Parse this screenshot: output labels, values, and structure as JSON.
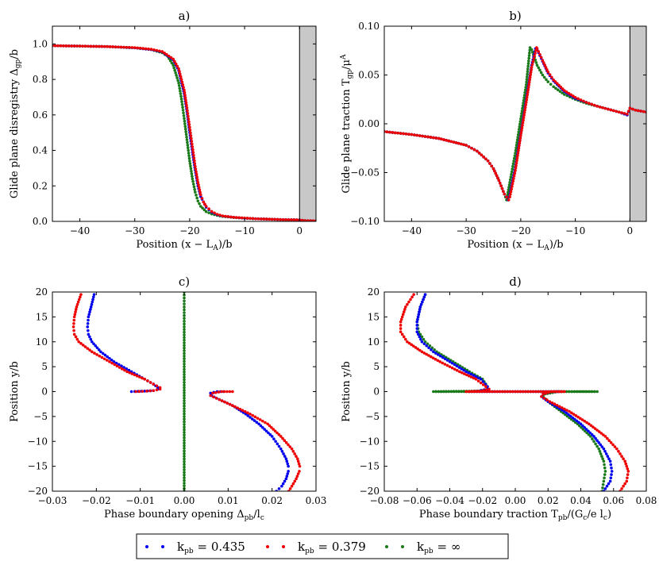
{
  "legend": {
    "entries": [
      {
        "label": "k_pb = 0.435",
        "color": "#0000ee"
      },
      {
        "label": "k_pb = 0.379",
        "color": "#ee0000"
      },
      {
        "label": "k_pb = ∞",
        "color": "#1a7a1a"
      }
    ]
  },
  "colors": {
    "blue": "#0000ee",
    "red": "#ee0000",
    "green": "#1a7a1a",
    "shade": "#c8c8c8"
  },
  "chart_data": [
    {
      "id": "a",
      "title": "a)",
      "type": "scatter",
      "xlabel": "Position (x − L_A)/b",
      "ylabel": "Glide plane disregistry Δ_gp/b",
      "xlim": [
        -45,
        3
      ],
      "ylim": [
        0,
        1.1
      ],
      "xticks": [
        -40,
        -30,
        -20,
        -10,
        0
      ],
      "yticks": [
        0,
        0.2,
        0.4,
        0.6,
        0.8,
        1.0
      ],
      "xtick_labels": [
        "−40",
        "−30",
        "−20",
        "−10",
        "0"
      ],
      "ytick_labels": [
        "0.0",
        "0.2",
        "0.4",
        "0.6",
        "0.8",
        "1.0"
      ],
      "shaded_region": [
        0,
        3
      ],
      "series": [
        {
          "color": "#1a7a1a",
          "x": [
            -45,
            -40,
            -35,
            -30,
            -27,
            -25,
            -24,
            -23,
            -22,
            -21.5,
            -21,
            -20.5,
            -20,
            -19.5,
            -19,
            -18.5,
            -18,
            -17,
            -16,
            -15,
            -14,
            -12,
            -10,
            -8,
            -5,
            -3,
            -1,
            0,
            1,
            3
          ],
          "y": [
            0.99,
            0.988,
            0.985,
            0.978,
            0.968,
            0.95,
            0.93,
            0.88,
            0.78,
            0.69,
            0.58,
            0.46,
            0.34,
            0.24,
            0.165,
            0.115,
            0.085,
            0.055,
            0.042,
            0.034,
            0.028,
            0.022,
            0.018,
            0.015,
            0.012,
            0.01,
            0.009,
            0.008,
            0.004,
            0.003
          ]
        },
        {
          "color": "#0000ee",
          "x": [
            -45,
            -40,
            -35,
            -30,
            -27,
            -25,
            -23,
            -22,
            -21,
            -20.5,
            -20,
            -19.5,
            -19,
            -18.5,
            -18,
            -17,
            -16,
            -15,
            -14,
            -12,
            -10,
            -8,
            -5,
            -3,
            -1,
            0,
            1,
            3
          ],
          "y": [
            0.99,
            0.988,
            0.985,
            0.978,
            0.968,
            0.955,
            0.91,
            0.85,
            0.72,
            0.62,
            0.5,
            0.39,
            0.29,
            0.2,
            0.14,
            0.08,
            0.052,
            0.038,
            0.03,
            0.023,
            0.018,
            0.015,
            0.012,
            0.01,
            0.009,
            0.008,
            0.004,
            0.003
          ]
        },
        {
          "color": "#ee0000",
          "x": [
            -45,
            -40,
            -35,
            -30,
            -27,
            -25,
            -23,
            -22,
            -21,
            -20.5,
            -20,
            -19.5,
            -19,
            -18.5,
            -18,
            -17.5,
            -17,
            -16,
            -15,
            -14,
            -12,
            -10,
            -8,
            -5,
            -3,
            -1,
            0,
            1,
            3
          ],
          "y": [
            0.99,
            0.988,
            0.985,
            0.979,
            0.97,
            0.957,
            0.915,
            0.86,
            0.74,
            0.64,
            0.53,
            0.42,
            0.31,
            0.22,
            0.15,
            0.11,
            0.085,
            0.056,
            0.04,
            0.031,
            0.023,
            0.019,
            0.015,
            0.012,
            0.01,
            0.009,
            0.008,
            0.004,
            0.003
          ]
        }
      ]
    },
    {
      "id": "b",
      "title": "b)",
      "type": "scatter",
      "xlabel": "Position (x − L_A)/b",
      "ylabel": "Glide plane traction T_gp/μ^A",
      "xlim": [
        -45,
        3
      ],
      "ylim": [
        -0.1,
        0.1
      ],
      "xticks": [
        -40,
        -30,
        -20,
        -10,
        0
      ],
      "yticks": [
        -0.1,
        -0.05,
        0,
        0.05,
        0.1
      ],
      "xtick_labels": [
        "−40",
        "−30",
        "−20",
        "−10",
        "0"
      ],
      "ytick_labels": [
        "−0.10",
        "−0.05",
        "0.00",
        "0.05",
        "0.10"
      ],
      "shaded_region": [
        0,
        3
      ],
      "series": [
        {
          "color": "#1a7a1a",
          "x": [
            -45,
            -40,
            -35,
            -30,
            -28,
            -26,
            -25,
            -24,
            -23,
            -22.6,
            -22,
            -21,
            -20,
            -19,
            -18.3,
            -18,
            -17.5,
            -17,
            -16,
            -15,
            -14,
            -12,
            -10,
            -8,
            -6,
            -4,
            -2,
            -0.5,
            0,
            1,
            3
          ],
          "y": [
            -0.008,
            -0.011,
            -0.015,
            -0.022,
            -0.028,
            -0.038,
            -0.046,
            -0.058,
            -0.072,
            -0.078,
            -0.06,
            -0.03,
            0.005,
            0.04,
            0.078,
            0.076,
            0.068,
            0.06,
            0.05,
            0.043,
            0.038,
            0.03,
            0.025,
            0.021,
            0.018,
            0.015,
            0.012,
            0.009,
            0.016,
            0.014,
            0.012
          ]
        },
        {
          "color": "#0000ee",
          "x": [
            -45,
            -40,
            -35,
            -30,
            -28,
            -26,
            -25,
            -24,
            -23,
            -22.3,
            -22,
            -21,
            -20,
            -19,
            -18,
            -17.3,
            -17,
            -16.5,
            -16,
            -15,
            -14,
            -12,
            -10,
            -8,
            -6,
            -4,
            -2,
            -0.5,
            0,
            1,
            3
          ],
          "y": [
            -0.008,
            -0.011,
            -0.015,
            -0.022,
            -0.028,
            -0.038,
            -0.046,
            -0.058,
            -0.072,
            -0.078,
            -0.072,
            -0.045,
            -0.01,
            0.025,
            0.06,
            0.077,
            0.076,
            0.07,
            0.064,
            0.052,
            0.044,
            0.033,
            0.026,
            0.022,
            0.018,
            0.015,
            0.012,
            0.009,
            0.016,
            0.014,
            0.012
          ]
        },
        {
          "color": "#ee0000",
          "x": [
            -45,
            -40,
            -35,
            -30,
            -28,
            -26,
            -25,
            -24,
            -23,
            -22.2,
            -22,
            -21,
            -20,
            -19,
            -18,
            -17.1,
            -17,
            -16.5,
            -16,
            -15,
            -14,
            -12,
            -10,
            -8,
            -6,
            -4,
            -2,
            -0.5,
            0,
            1,
            3
          ],
          "y": [
            -0.008,
            -0.011,
            -0.015,
            -0.022,
            -0.028,
            -0.038,
            -0.046,
            -0.058,
            -0.072,
            -0.078,
            -0.075,
            -0.048,
            -0.012,
            0.022,
            0.058,
            0.078,
            0.077,
            0.071,
            0.065,
            0.053,
            0.045,
            0.034,
            0.027,
            0.022,
            0.018,
            0.015,
            0.012,
            0.01,
            0.016,
            0.014,
            0.012
          ]
        }
      ]
    },
    {
      "id": "c",
      "title": "c)",
      "type": "scatter",
      "xlabel": "Phase boundary opening Δ_pb/l_c",
      "ylabel": "Position y/b",
      "xlim": [
        -0.03,
        0.03
      ],
      "ylim": [
        -20,
        20
      ],
      "xticks": [
        -0.03,
        -0.02,
        -0.01,
        0,
        0.01,
        0.02,
        0.03
      ],
      "yticks": [
        -20,
        -15,
        -10,
        -5,
        0,
        5,
        10,
        15,
        20
      ],
      "xtick_labels": [
        "−0.03",
        "−0.02",
        "−0.01",
        "0.00",
        "0.01",
        "0.02",
        "0.03"
      ],
      "ytick_labels": [
        "−20",
        "−15",
        "−10",
        "−5",
        "0",
        "5",
        "10",
        "15",
        "20"
      ],
      "series": [
        {
          "color": "#0000ee",
          "x": [
            -0.0205,
            -0.0212,
            -0.0218,
            -0.022,
            -0.0218,
            -0.021,
            -0.019,
            -0.016,
            -0.012,
            -0.009,
            -0.007,
            -0.006,
            -0.006,
            -0.007,
            -0.009,
            -0.0105,
            -0.012
          ],
          "y": [
            19.5,
            17,
            15,
            13,
            11.5,
            10,
            8,
            6,
            4,
            2.5,
            1.5,
            0.8,
            0.5,
            0.2,
            0.1,
            0.05,
            0
          ]
        },
        {
          "color": "#ee0000",
          "x": [
            -0.0235,
            -0.0245,
            -0.025,
            -0.0252,
            -0.025,
            -0.024,
            -0.021,
            -0.017,
            -0.013,
            -0.009,
            -0.007,
            -0.0055,
            -0.0055,
            -0.007,
            -0.0085,
            -0.0095,
            -0.011
          ],
          "y": [
            19.5,
            17,
            15,
            13,
            11.5,
            10,
            8,
            6,
            4,
            2.5,
            1.5,
            0.8,
            0.5,
            0.2,
            0.1,
            0.05,
            0
          ]
        },
        {
          "color": "#0000ee",
          "x": [
            0.009,
            0.0075,
            0.006,
            0.0062,
            0.008,
            0.011,
            0.014,
            0.017,
            0.02,
            0.022,
            0.0232,
            0.0237,
            0.0237,
            0.0232,
            0.0222,
            0.021
          ],
          "y": [
            0,
            0,
            -0.3,
            -0.8,
            -1.6,
            -2.8,
            -4.5,
            -6.5,
            -9,
            -11.5,
            -13.5,
            -15,
            -16,
            -17.5,
            -19,
            -20
          ]
        },
        {
          "color": "#ee0000",
          "x": [
            0.011,
            0.0085,
            0.0065,
            0.006,
            0.008,
            0.011,
            0.015,
            0.019,
            0.022,
            0.0245,
            0.0258,
            0.0263,
            0.0262,
            0.0255,
            0.0245,
            0.0238
          ],
          "y": [
            0,
            0,
            -0.3,
            -0.8,
            -1.6,
            -2.8,
            -4.5,
            -6.5,
            -9,
            -11.5,
            -13.5,
            -15,
            -16,
            -17.5,
            -19,
            -20
          ]
        },
        {
          "color": "#1a7a1a",
          "x": [
            0,
            0,
            0,
            0,
            0,
            0,
            0
          ],
          "y": [
            20,
            17,
            13,
            5,
            -5,
            -13,
            -20
          ]
        }
      ]
    },
    {
      "id": "d",
      "title": "d)",
      "type": "scatter",
      "xlabel": "Phase boundary traction T_pb/(G_c/e l_c)",
      "ylabel": "Position y/b",
      "xlim": [
        -0.08,
        0.08
      ],
      "ylim": [
        -20,
        20
      ],
      "xticks": [
        -0.08,
        -0.06,
        -0.04,
        -0.02,
        0,
        0.02,
        0.04,
        0.06,
        0.08
      ],
      "yticks": [
        -20,
        -15,
        -10,
        -5,
        0,
        5,
        10,
        15,
        20
      ],
      "xtick_labels": [
        "−0.08",
        "−0.06",
        "−0.04",
        "−0.02",
        "0.00",
        "0.02",
        "0.04",
        "0.06",
        "0.08"
      ],
      "ytick_labels": [
        "−20",
        "−15",
        "−10",
        "−5",
        "0",
        "5",
        "10",
        "15",
        "20"
      ],
      "series": [
        {
          "color": "#1a7a1a",
          "x": [
            -0.055,
            -0.058,
            -0.06,
            -0.059,
            -0.055,
            -0.048,
            -0.038,
            -0.028,
            -0.02,
            -0.017,
            -0.017,
            -0.022,
            -0.05,
            0.05,
            0.038,
            0.026,
            0.018,
            0.017,
            0.02,
            0.028,
            0.038,
            0.046,
            0.051,
            0.054,
            0.055,
            0.054,
            0.053
          ],
          "y": [
            19.5,
            17,
            14,
            12,
            10,
            8,
            6,
            4,
            2.5,
            1,
            0.5,
            0.1,
            0,
            0,
            0,
            0,
            -0.5,
            -1,
            -2,
            -4,
            -6.5,
            -9,
            -11.5,
            -14,
            -16,
            -18,
            -20
          ]
        },
        {
          "color": "#0000ee",
          "x": [
            -0.055,
            -0.058,
            -0.06,
            -0.06,
            -0.057,
            -0.05,
            -0.04,
            -0.03,
            -0.021,
            -0.017,
            -0.017,
            -0.023,
            -0.028,
            0.028,
            0.022,
            0.017,
            0.016,
            0.02,
            0.03,
            0.04,
            0.048,
            0.054,
            0.058,
            0.059,
            0.058,
            0.056,
            0.054
          ],
          "y": [
            19.5,
            17,
            14,
            12,
            10,
            8,
            6,
            4,
            2.5,
            1,
            0.5,
            0.1,
            0,
            0,
            0,
            -0.5,
            -1,
            -2,
            -4,
            -6.5,
            -9,
            -11.5,
            -14,
            -16,
            -18,
            -19,
            -20
          ]
        },
        {
          "color": "#ee0000",
          "x": [
            -0.062,
            -0.067,
            -0.07,
            -0.07,
            -0.066,
            -0.057,
            -0.046,
            -0.034,
            -0.024,
            -0.018,
            -0.016,
            -0.021,
            -0.03,
            0.03,
            0.022,
            0.017,
            0.016,
            0.021,
            0.033,
            0.045,
            0.055,
            0.062,
            0.067,
            0.069,
            0.068,
            0.066,
            0.064
          ],
          "y": [
            19.5,
            17,
            14,
            12,
            10,
            8,
            6,
            4,
            2.5,
            1,
            0.5,
            0.1,
            0,
            0,
            0,
            -0.5,
            -1,
            -2,
            -4,
            -6.5,
            -9,
            -11.5,
            -14,
            -16,
            -18,
            -19,
            -20
          ]
        }
      ]
    }
  ]
}
